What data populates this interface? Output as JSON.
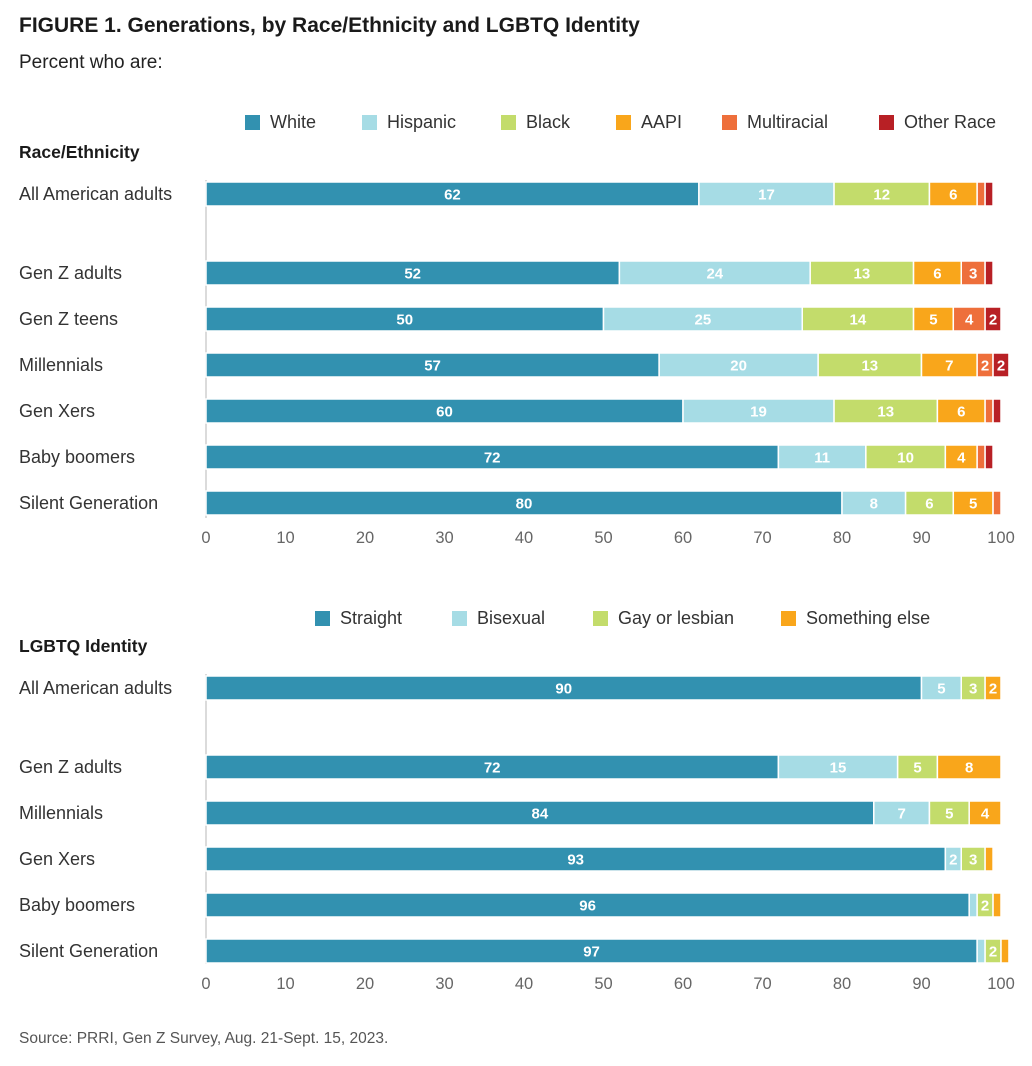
{
  "title": "FIGURE 1.  Generations, by Race/Ethnicity and LGBTQ Identity",
  "subtitle": "Percent who are:",
  "source": "Source: PRRI, Gen Z Survey, Aug. 21-Sept. 15, 2023.",
  "chart_data": [
    {
      "type": "bar",
      "orientation": "horizontal",
      "stacked": true,
      "section_label": "Race/Ethnicity",
      "categories": [
        "All American adults",
        "Gen Z adults",
        "Gen Z teens",
        "Millennials",
        "Gen Xers",
        "Baby boomers",
        "Silent Generation"
      ],
      "xlim": [
        0,
        100
      ],
      "xticks": [
        0,
        10,
        20,
        30,
        40,
        50,
        60,
        70,
        80,
        90,
        100
      ],
      "legend_position": "top",
      "grid": false,
      "series": [
        {
          "name": "White",
          "color": "#3291b0",
          "values": [
            62,
            52,
            50,
            57,
            60,
            72,
            80
          ],
          "labels": [
            "62",
            "52",
            "50",
            "57",
            "60",
            "72",
            "80"
          ]
        },
        {
          "name": "Hispanic",
          "color": "#a6dce5",
          "values": [
            17,
            24,
            25,
            20,
            19,
            11,
            8
          ],
          "labels": [
            "17",
            "24",
            "25",
            "20",
            "19",
            "11",
            "8"
          ]
        },
        {
          "name": "Black",
          "color": "#c3dc6b",
          "values": [
            12,
            13,
            14,
            13,
            13,
            10,
            6
          ],
          "labels": [
            "12",
            "13",
            "14",
            "13",
            "13",
            "10",
            "6"
          ]
        },
        {
          "name": "AAPI",
          "color": "#f9a61b",
          "values": [
            6,
            6,
            5,
            7,
            6,
            4,
            5
          ],
          "labels": [
            "6",
            "6",
            "5",
            "7",
            "6",
            "4",
            "5"
          ]
        },
        {
          "name": "Multiracial",
          "color": "#ee6f3b",
          "values": [
            1,
            3,
            4,
            2,
            1,
            1,
            1
          ],
          "labels": [
            "",
            "3",
            "4",
            "2",
            "",
            "",
            ""
          ]
        },
        {
          "name": "Other Race",
          "color": "#b82025",
          "values": [
            1,
            1,
            2,
            2,
            1,
            1,
            0
          ],
          "labels": [
            "",
            "",
            "2",
            "2",
            "",
            "",
            ""
          ]
        }
      ]
    },
    {
      "type": "bar",
      "orientation": "horizontal",
      "stacked": true,
      "section_label": "LGBTQ Identity",
      "categories": [
        "All American adults",
        "Gen Z adults",
        "Millennials",
        "Gen Xers",
        "Baby boomers",
        "Silent Generation"
      ],
      "xlim": [
        0,
        100
      ],
      "xticks": [
        0,
        10,
        20,
        30,
        40,
        50,
        60,
        70,
        80,
        90,
        100
      ],
      "legend_position": "top",
      "grid": false,
      "series": [
        {
          "name": "Straight",
          "color": "#3291b0",
          "values": [
            90,
            72,
            84,
            93,
            96,
            97
          ],
          "labels": [
            "90",
            "72",
            "84",
            "93",
            "96",
            "97"
          ]
        },
        {
          "name": "Bisexual",
          "color": "#a6dce5",
          "values": [
            5,
            15,
            7,
            2,
            1,
            1
          ],
          "labels": [
            "5",
            "15",
            "7",
            "2",
            "",
            ""
          ]
        },
        {
          "name": "Gay or lesbian",
          "color": "#c3dc6b",
          "values": [
            3,
            5,
            5,
            3,
            2,
            2
          ],
          "labels": [
            "3",
            "5",
            "5",
            "3",
            "2",
            "2"
          ]
        },
        {
          "name": "Something else",
          "color": "#f9a61b",
          "values": [
            2,
            8,
            4,
            1,
            1,
            1
          ],
          "labels": [
            "2",
            "8",
            "4",
            "",
            "",
            ""
          ]
        }
      ]
    }
  ]
}
